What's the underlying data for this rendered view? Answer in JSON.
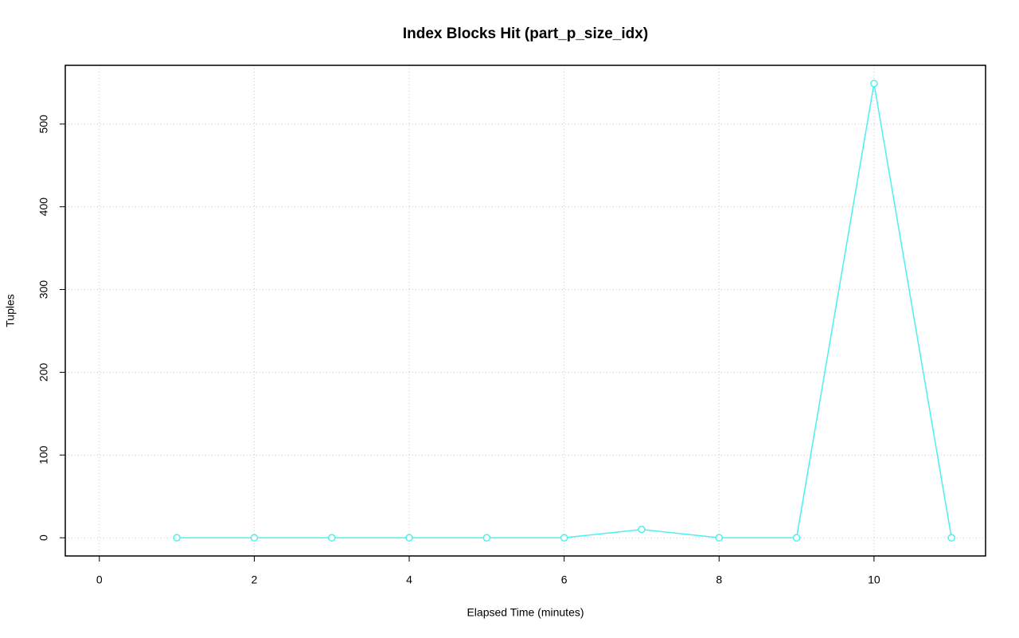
{
  "chart_data": {
    "type": "line",
    "title": "Index Blocks Hit (part_p_size_idx)",
    "x_label": "Elapsed Time (minutes)",
    "y_label": "Tuples",
    "x": [
      1,
      2,
      3,
      4,
      5,
      6,
      7,
      8,
      9,
      10,
      11
    ],
    "series": [
      {
        "color": "#4df0f0",
        "values": [
          0,
          0,
          0,
          0,
          0,
          0,
          10,
          0,
          0,
          549,
          0
        ]
      }
    ],
    "xlim": [
      -0.44,
      11.44
    ],
    "xticks": [
      0,
      2,
      4,
      6,
      8,
      10
    ],
    "ylim": [
      -22,
      571
    ],
    "yticks": [
      0,
      100,
      200,
      300,
      400,
      500
    ],
    "grid": true
  }
}
